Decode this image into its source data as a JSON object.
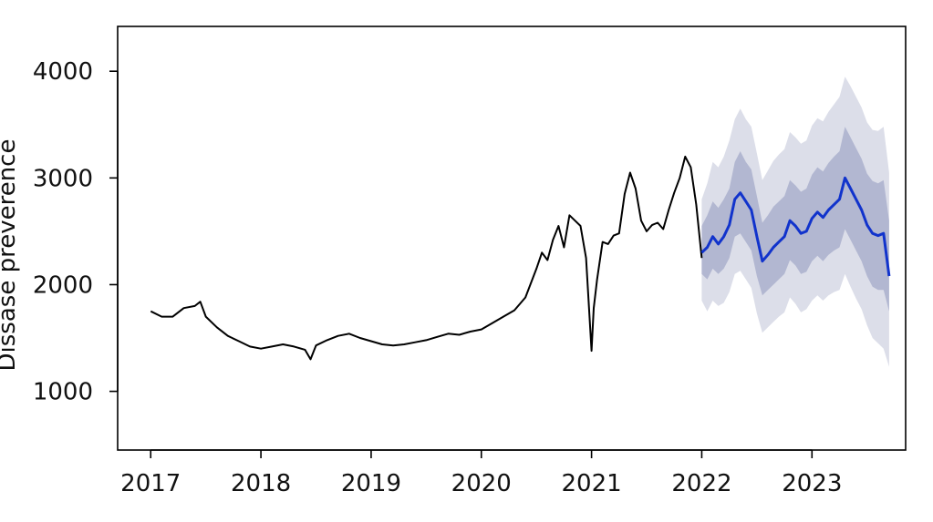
{
  "chart_data": {
    "type": "line",
    "title": "",
    "xlabel": "",
    "ylabel": "Dissase preverence",
    "xlim": [
      2016.7,
      2023.85
    ],
    "ylim": [
      450,
      4420
    ],
    "x_ticks": [
      2017,
      2018,
      2019,
      2020,
      2021,
      2022,
      2023
    ],
    "x_tick_labels": [
      "2017",
      "2018",
      "2019",
      "2020",
      "2021",
      "2022",
      "2023"
    ],
    "y_ticks": [
      1000,
      2000,
      3000,
      4000
    ],
    "y_tick_labels": [
      "1000",
      "2000",
      "3000",
      "4000"
    ],
    "grid": false,
    "colors": {
      "history": "#000000",
      "forecast": "#1133cc",
      "band_outer": "#dcdee9",
      "band_inner": "#b2b7d1"
    },
    "series": [
      {
        "role": "history",
        "x": [
          2017.0,
          2017.1,
          2017.2,
          2017.3,
          2017.4,
          2017.45,
          2017.5,
          2017.6,
          2017.7,
          2017.8,
          2017.9,
          2018.0,
          2018.1,
          2018.2,
          2018.3,
          2018.4,
          2018.45,
          2018.5,
          2018.6,
          2018.7,
          2018.8,
          2018.9,
          2019.0,
          2019.1,
          2019.2,
          2019.3,
          2019.4,
          2019.5,
          2019.6,
          2019.7,
          2019.8,
          2019.9,
          2020.0,
          2020.1,
          2020.2,
          2020.3,
          2020.4,
          2020.5,
          2020.55,
          2020.6,
          2020.65,
          2020.7,
          2020.75,
          2020.8,
          2020.85,
          2020.9,
          2020.95,
          2021.0,
          2021.02,
          2021.05,
          2021.1,
          2021.15,
          2021.2,
          2021.25,
          2021.3,
          2021.35,
          2021.4,
          2021.45,
          2021.5,
          2021.55,
          2021.6,
          2021.65,
          2021.7,
          2021.75,
          2021.8,
          2021.85,
          2021.9,
          2021.95,
          2022.0
        ],
        "values": [
          1750,
          1700,
          1700,
          1780,
          1800,
          1840,
          1700,
          1600,
          1520,
          1470,
          1420,
          1400,
          1420,
          1440,
          1420,
          1390,
          1300,
          1430,
          1480,
          1520,
          1540,
          1500,
          1470,
          1440,
          1430,
          1440,
          1460,
          1480,
          1510,
          1540,
          1530,
          1560,
          1580,
          1640,
          1700,
          1760,
          1880,
          2150,
          2300,
          2230,
          2420,
          2550,
          2350,
          2650,
          2600,
          2550,
          2250,
          1380,
          1780,
          2050,
          2400,
          2380,
          2460,
          2480,
          2850,
          3050,
          2900,
          2600,
          2500,
          2560,
          2580,
          2520,
          2700,
          2860,
          3000,
          3200,
          3100,
          2750,
          2250
        ]
      },
      {
        "role": "forecast",
        "x": [
          2022.0,
          2022.05,
          2022.1,
          2022.15,
          2022.2,
          2022.25,
          2022.3,
          2022.35,
          2022.4,
          2022.45,
          2022.5,
          2022.55,
          2022.6,
          2022.65,
          2022.7,
          2022.75,
          2022.8,
          2022.85,
          2022.9,
          2022.95,
          2023.0,
          2023.05,
          2023.1,
          2023.15,
          2023.2,
          2023.25,
          2023.3,
          2023.35,
          2023.4,
          2023.45,
          2023.5,
          2023.55,
          2023.6,
          2023.65,
          2023.7
        ],
        "values": [
          2300,
          2350,
          2450,
          2380,
          2450,
          2560,
          2800,
          2860,
          2780,
          2700,
          2450,
          2220,
          2280,
          2350,
          2400,
          2450,
          2600,
          2550,
          2480,
          2500,
          2620,
          2680,
          2630,
          2700,
          2750,
          2800,
          3000,
          2900,
          2800,
          2700,
          2560,
          2480,
          2460,
          2480,
          2080
        ],
        "inner_lower": [
          2100,
          2050,
          2150,
          2100,
          2150,
          2250,
          2450,
          2480,
          2400,
          2320,
          2080,
          1900,
          1950,
          2000,
          2050,
          2100,
          2230,
          2180,
          2100,
          2120,
          2220,
          2270,
          2220,
          2280,
          2320,
          2350,
          2520,
          2420,
          2320,
          2220,
          2080,
          1980,
          1950,
          1950,
          1750
        ],
        "inner_upper": [
          2550,
          2650,
          2780,
          2720,
          2800,
          2900,
          3150,
          3250,
          3150,
          3080,
          2830,
          2580,
          2650,
          2730,
          2780,
          2830,
          2980,
          2930,
          2870,
          2900,
          3030,
          3100,
          3060,
          3140,
          3200,
          3250,
          3480,
          3380,
          3280,
          3180,
          3040,
          2970,
          2950,
          2980,
          2600
        ],
        "outer_lower": [
          1850,
          1750,
          1850,
          1800,
          1830,
          1930,
          2100,
          2130,
          2050,
          1970,
          1730,
          1550,
          1600,
          1650,
          1700,
          1740,
          1880,
          1820,
          1740,
          1770,
          1850,
          1900,
          1850,
          1900,
          1930,
          1950,
          2100,
          1980,
          1870,
          1770,
          1620,
          1500,
          1450,
          1400,
          1230
        ],
        "outer_upper": [
          2800,
          2950,
          3150,
          3100,
          3200,
          3350,
          3550,
          3650,
          3550,
          3480,
          3230,
          2980,
          3070,
          3160,
          3220,
          3270,
          3430,
          3380,
          3320,
          3350,
          3490,
          3560,
          3530,
          3620,
          3690,
          3760,
          3950,
          3860,
          3760,
          3660,
          3520,
          3450,
          3440,
          3480,
          3050
        ]
      }
    ]
  }
}
